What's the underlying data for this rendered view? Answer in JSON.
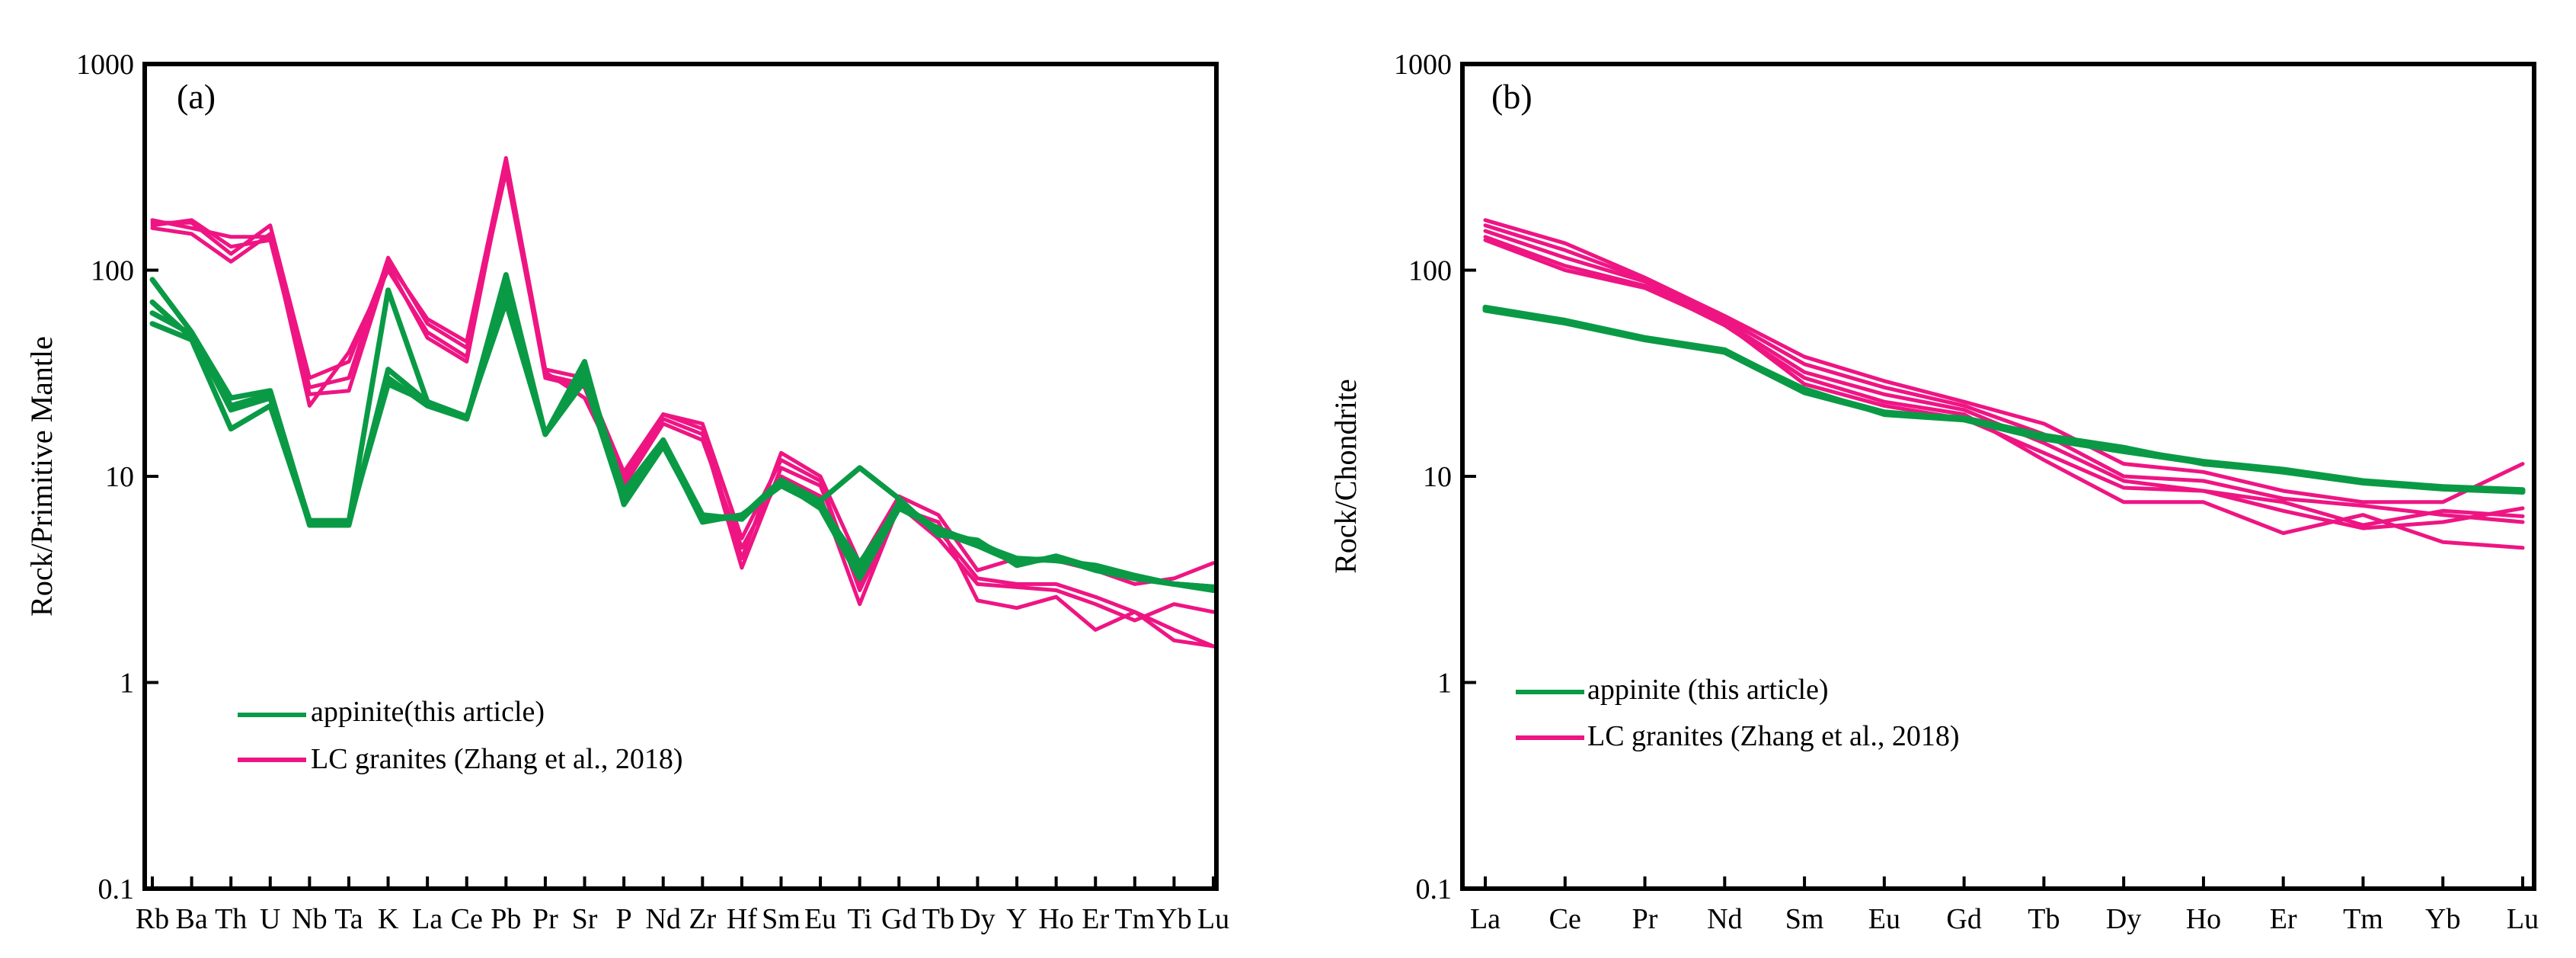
{
  "chart_data": [
    {
      "type": "line",
      "panel_label": "(a)",
      "title": "",
      "xlabel": "",
      "ylabel": "Rock/Primitive Mantle",
      "yscale": "log",
      "ylim": [
        0.1,
        1000
      ],
      "yticks": [
        0.1,
        1,
        10,
        100,
        1000
      ],
      "ytick_labels": [
        "0.1",
        "1",
        "10",
        "100",
        "1000"
      ],
      "categories": [
        "Rb",
        "Ba",
        "Th",
        "U",
        "Nb",
        "Ta",
        "K",
        "La",
        "Ce",
        "Pb",
        "Pr",
        "Sr",
        "P",
        "Nd",
        "Zr",
        "Hf",
        "Sm",
        "Eu",
        "Ti",
        "Gd",
        "Tb",
        "Dy",
        "Y",
        "Ho",
        "Er",
        "Tm",
        "Yb",
        "Lu"
      ],
      "legend": {
        "placement": "bottom-left",
        "entries": [
          {
            "label": "appinite(this article)",
            "color": "#0a9a45"
          },
          {
            "label": "LC granites (Zhang et al., 2018)",
            "color": "#ee1583"
          }
        ]
      },
      "series": [
        {
          "name": "appinite 1",
          "group": "appinite",
          "color": "#0a9a45",
          "values": [
            90,
            50,
            24,
            26,
            6,
            6,
            80,
            23,
            19,
            95,
            16,
            33,
            8.5,
            15,
            6.5,
            6.2,
            9.5,
            7.5,
            3.5,
            7.5,
            5.5,
            4.8,
            3.9,
            4.0,
            3.6,
            3.2,
            3.0,
            2.9
          ]
        },
        {
          "name": "appinite 2",
          "group": "appinite",
          "color": "#0a9a45",
          "values": [
            70,
            47,
            22,
            25,
            5.8,
            5.8,
            33,
            23,
            19,
            85,
            16,
            29,
            7.5,
            14.5,
            6.0,
            6.5,
            9.0,
            7.2,
            3.8,
            7.2,
            5.4,
            4.6,
            3.8,
            4.0,
            3.5,
            3.2,
            3.0,
            2.9
          ]
        },
        {
          "name": "appinite 3",
          "group": "appinite",
          "color": "#0a9a45",
          "values": [
            55,
            46,
            17,
            22,
            5.9,
            5.9,
            30,
            22,
            19,
            75,
            16,
            36,
            7.3,
            14,
            6.2,
            6.3,
            9.3,
            7.0,
            3.2,
            7.0,
            5.6,
            4.7,
            4.0,
            3.9,
            3.7,
            3.3,
            3.0,
            2.8
          ]
        },
        {
          "name": "appinite 4",
          "group": "appinite",
          "color": "#0a9a45",
          "values": [
            62,
            49,
            21,
            24,
            6.1,
            6.1,
            28,
            23,
            19.5,
            70,
            16,
            31,
            7.8,
            15,
            6.3,
            6.4,
            9.6,
            7.6,
            11,
            7.8,
            5.2,
            4.9,
            3.7,
            4.1,
            3.6,
            3.3,
            3.0,
            2.9
          ]
        },
        {
          "name": "granite 1",
          "group": "granite",
          "color": "#ee1583",
          "values": [
            170,
            170,
            120,
            165,
            30,
            36,
            110,
            58,
            45,
            350,
            33,
            30,
            10.5,
            20,
            17,
            4.0,
            13,
            10,
            3.8,
            8.0,
            6.5,
            3.5,
            4.0,
            3.9,
            3.5,
            3.0,
            3.2,
            3.8
          ]
        },
        {
          "name": "granite 2",
          "group": "granite",
          "color": "#ee1583",
          "values": [
            175,
            160,
            145,
            145,
            27,
            30,
            115,
            55,
            42,
            300,
            31,
            28,
            9.5,
            19,
            16,
            3.6,
            11,
            9,
            3.0,
            7.5,
            5.5,
            3.2,
            3.0,
            3.0,
            2.6,
            2.2,
            1.8,
            1.5
          ]
        },
        {
          "name": "granite 3",
          "group": "granite",
          "color": "#ee1583",
          "values": [
            160,
            150,
            110,
            150,
            22,
            40,
            100,
            50,
            38,
            320,
            30,
            27,
            9.0,
            18,
            15,
            4.5,
            10,
            8,
            2.4,
            7.2,
            5.0,
            3.0,
            2.9,
            2.8,
            2.4,
            2.0,
            2.4,
            2.2
          ]
        },
        {
          "name": "granite 4",
          "group": "granite",
          "color": "#ee1583",
          "values": [
            165,
            175,
            130,
            140,
            25,
            26,
            105,
            47,
            36,
            330,
            32,
            24,
            9.8,
            20,
            18,
            5.0,
            12,
            9.5,
            2.8,
            7.0,
            6.0,
            2.5,
            2.3,
            2.6,
            1.8,
            2.2,
            1.6,
            1.5
          ]
        }
      ]
    },
    {
      "type": "line",
      "panel_label": "(b)",
      "title": "",
      "xlabel": "",
      "ylabel": "Rock/Chondrite",
      "yscale": "log",
      "ylim": [
        0.1,
        1000
      ],
      "yticks": [
        0.1,
        1,
        10,
        100,
        1000
      ],
      "ytick_labels": [
        "0.1",
        "1",
        "10",
        "100",
        "1000"
      ],
      "categories": [
        "La",
        "Ce",
        "Pr",
        "Nd",
        "Sm",
        "Eu",
        "Gd",
        "Tb",
        "Dy",
        "Ho",
        "Er",
        "Tm",
        "Yb",
        "Lu"
      ],
      "legend": {
        "placement": "bottom-left",
        "entries": [
          {
            "label": "appinite (this article)",
            "color": "#0a9a45"
          },
          {
            "label": "LC granites (Zhang et al., 2018)",
            "color": "#ee1583"
          }
        ]
      },
      "series": [
        {
          "name": "appinite 1",
          "group": "appinite",
          "color": "#0a9a45",
          "values": [
            66,
            57,
            47,
            41,
            26,
            20.5,
            19,
            15.5,
            13.5,
            11.8,
            10.8,
            9.5,
            8.9,
            8.6
          ]
        },
        {
          "name": "appinite 2",
          "group": "appinite",
          "color": "#0a9a45",
          "values": [
            65,
            56,
            46.5,
            40.5,
            26.5,
            20,
            18.8,
            15.2,
            13.2,
            11.6,
            10.5,
            9.3,
            8.7,
            8.4
          ]
        },
        {
          "name": "appinite 3",
          "group": "appinite",
          "color": "#0a9a45",
          "values": [
            64,
            55.5,
            46,
            40,
            25.5,
            20.2,
            19.2,
            15.8,
            13.8,
            11.5,
            10.6,
            9.4,
            8.8,
            8.5
          ]
        },
        {
          "name": "granite 1",
          "group": "granite",
          "color": "#ee1583",
          "values": [
            175,
            135,
            92,
            60,
            38,
            29,
            23,
            18,
            11.5,
            10.5,
            8.5,
            7.5,
            7.5,
            11.5
          ]
        },
        {
          "name": "granite 2",
          "group": "granite",
          "color": "#ee1583",
          "values": [
            165,
            125,
            90,
            58,
            35,
            27,
            22,
            16,
            10,
            9.5,
            7.8,
            7.2,
            6.5,
            6.0
          ]
        },
        {
          "name": "granite 3",
          "group": "granite",
          "color": "#ee1583",
          "values": [
            155,
            115,
            88,
            56,
            32,
            25,
            21,
            14.5,
            9.5,
            8.5,
            6.8,
            5.6,
            6.0,
            7.0
          ]
        },
        {
          "name": "granite 4",
          "group": "granite",
          "color": "#ee1583",
          "values": [
            145,
            105,
            84,
            54,
            30,
            23,
            20,
            12,
            7.5,
            7.5,
            5.3,
            6.5,
            4.8,
            4.5
          ]
        },
        {
          "name": "granite 5",
          "group": "granite",
          "color": "#ee1583",
          "values": [
            140,
            100,
            82,
            55,
            28,
            22,
            19,
            13,
            8.8,
            8.5,
            7.5,
            5.8,
            6.8,
            6.4
          ]
        }
      ]
    }
  ]
}
